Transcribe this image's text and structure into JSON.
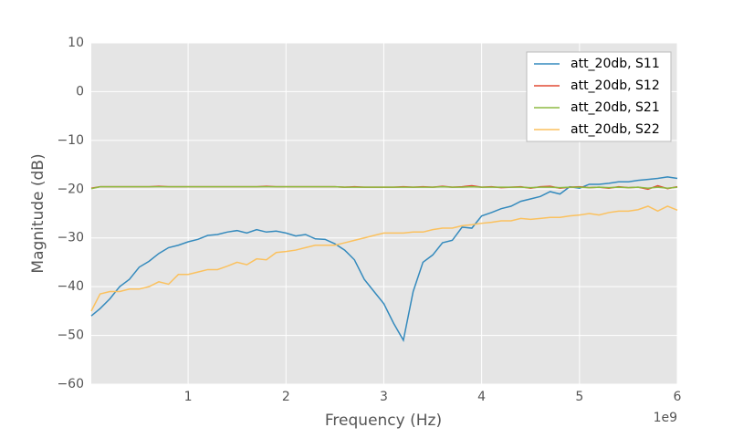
{
  "chart_data": {
    "type": "line",
    "xlabel": "Frequency (Hz)",
    "ylabel": "Magnitude (dB)",
    "x_offset_label": "1e9",
    "x": [
      10000000.0,
      100000000.0,
      200000000.0,
      300000000.0,
      400000000.0,
      500000000.0,
      600000000.0,
      700000000.0,
      800000000.0,
      900000000.0,
      1000000000.0,
      1100000000.0,
      1200000000.0,
      1300000000.0,
      1400000000.0,
      1500000000.0,
      1600000000.0,
      1700000000.0,
      1800000000.0,
      1900000000.0,
      2000000000.0,
      2100000000.0,
      2200000000.0,
      2300000000.0,
      2400000000.0,
      2500000000.0,
      2600000000.0,
      2700000000.0,
      2800000000.0,
      2900000000.0,
      3000000000.0,
      3100000000.0,
      3200000000.0,
      3300000000.0,
      3400000000.0,
      3500000000.0,
      3600000000.0,
      3700000000.0,
      3800000000.0,
      3900000000.0,
      4000000000.0,
      4100000000.0,
      4200000000.0,
      4300000000.0,
      4400000000.0,
      4500000000.0,
      4600000000.0,
      4700000000.0,
      4800000000.0,
      4900000000.0,
      5000000000.0,
      5100000000.0,
      5200000000.0,
      5300000000.0,
      5400000000.0,
      5500000000.0,
      5600000000.0,
      5700000000.0,
      5800000000.0,
      5900000000.0,
      6000000000.0
    ],
    "series": [
      {
        "name": "att_20db, S11",
        "color": "#348abd",
        "values": [
          -46,
          -44.5,
          -42.5,
          -40,
          -38.5,
          -36,
          -34.8,
          -33.2,
          -32,
          -31.5,
          -30.8,
          -30.3,
          -29.5,
          -29.3,
          -28.8,
          -28.5,
          -29,
          -28.3,
          -28.8,
          -28.6,
          -29,
          -29.6,
          -29.3,
          -30.2,
          -30.3,
          -31.2,
          -32.5,
          -34.5,
          -38.5,
          -41,
          -43.5,
          -47.5,
          -51,
          -41,
          -35,
          -33.5,
          -31,
          -30.5,
          -27.8,
          -28,
          -25.5,
          -24.8,
          -24,
          -23.5,
          -22.5,
          -22,
          -21.5,
          -20.5,
          -21,
          -19.5,
          -19.8,
          -19,
          -19,
          -18.8,
          -18.5,
          -18.5,
          -18.2,
          -18,
          -17.8,
          -17.5,
          -17.8
        ]
      },
      {
        "name": "att_20db, S12",
        "color": "#e24a33",
        "values": [
          -19.8,
          -19.5,
          -19.5,
          -19.5,
          -19.5,
          -19.5,
          -19.5,
          -19.4,
          -19.5,
          -19.5,
          -19.5,
          -19.5,
          -19.5,
          -19.5,
          -19.5,
          -19.5,
          -19.5,
          -19.5,
          -19.4,
          -19.5,
          -19.5,
          -19.5,
          -19.5,
          -19.5,
          -19.5,
          -19.5,
          -19.6,
          -19.5,
          -19.6,
          -19.6,
          -19.6,
          -19.6,
          -19.5,
          -19.6,
          -19.5,
          -19.6,
          -19.4,
          -19.6,
          -19.5,
          -19.3,
          -19.6,
          -19.5,
          -19.7,
          -19.6,
          -19.5,
          -19.8,
          -19.5,
          -19.4,
          -19.8,
          -19.6,
          -19.5,
          -19.7,
          -19.6,
          -19.8,
          -19.5,
          -19.7,
          -19.6,
          -20,
          -19.3,
          -19.9,
          -19.5
        ]
      },
      {
        "name": "att_20db, S21",
        "color": "#8eba42",
        "values": [
          -19.9,
          -19.5,
          -19.5,
          -19.5,
          -19.5,
          -19.5,
          -19.5,
          -19.5,
          -19.5,
          -19.5,
          -19.5,
          -19.5,
          -19.5,
          -19.5,
          -19.5,
          -19.5,
          -19.5,
          -19.5,
          -19.5,
          -19.5,
          -19.5,
          -19.5,
          -19.5,
          -19.5,
          -19.5,
          -19.5,
          -19.6,
          -19.6,
          -19.6,
          -19.6,
          -19.6,
          -19.6,
          -19.6,
          -19.6,
          -19.6,
          -19.6,
          -19.5,
          -19.6,
          -19.6,
          -19.5,
          -19.6,
          -19.6,
          -19.6,
          -19.6,
          -19.6,
          -19.7,
          -19.6,
          -19.6,
          -19.7,
          -19.6,
          -19.6,
          -19.7,
          -19.6,
          -19.7,
          -19.6,
          -19.7,
          -19.6,
          -19.8,
          -19.6,
          -19.8,
          -19.6
        ]
      },
      {
        "name": "att_20db, S22",
        "color": "#fbc15e",
        "values": [
          -45,
          -41.5,
          -41,
          -41,
          -40.5,
          -40.5,
          -40,
          -39,
          -39.5,
          -37.5,
          -37.5,
          -37,
          -36.5,
          -36.5,
          -35.8,
          -35,
          -35.5,
          -34.3,
          -34.5,
          -33,
          -32.8,
          -32.5,
          -32,
          -31.5,
          -31.5,
          -31.5,
          -31,
          -30.5,
          -30,
          -29.5,
          -29,
          -29,
          -29,
          -28.8,
          -28.8,
          -28.3,
          -28,
          -28,
          -27.5,
          -27.3,
          -27,
          -26.8,
          -26.5,
          -26.5,
          -26,
          -26.2,
          -26,
          -25.8,
          -25.8,
          -25.5,
          -25.3,
          -25,
          -25.3,
          -24.8,
          -24.5,
          -24.5,
          -24.2,
          -23.5,
          -24.5,
          -23.5,
          -24.3
        ]
      }
    ],
    "xlim": [
      10000000.0,
      6000000000.0
    ],
    "xticks": [
      {
        "value": 1000000000.0,
        "label": "1"
      },
      {
        "value": 2000000000.0,
        "label": "2"
      },
      {
        "value": 3000000000.0,
        "label": "3"
      },
      {
        "value": 4000000000.0,
        "label": "4"
      },
      {
        "value": 5000000000.0,
        "label": "5"
      },
      {
        "value": 6000000000.0,
        "label": "6"
      }
    ],
    "ylim": [
      -60,
      10
    ],
    "yticks": [
      {
        "value": -60,
        "label": "−60"
      },
      {
        "value": -50,
        "label": "−50"
      },
      {
        "value": -40,
        "label": "−40"
      },
      {
        "value": -30,
        "label": "−30"
      },
      {
        "value": -20,
        "label": "−20"
      },
      {
        "value": -10,
        "label": "−10"
      },
      0,
      10
    ],
    "grid": true,
    "legend": "upper right",
    "background": "#e5e5e5"
  }
}
